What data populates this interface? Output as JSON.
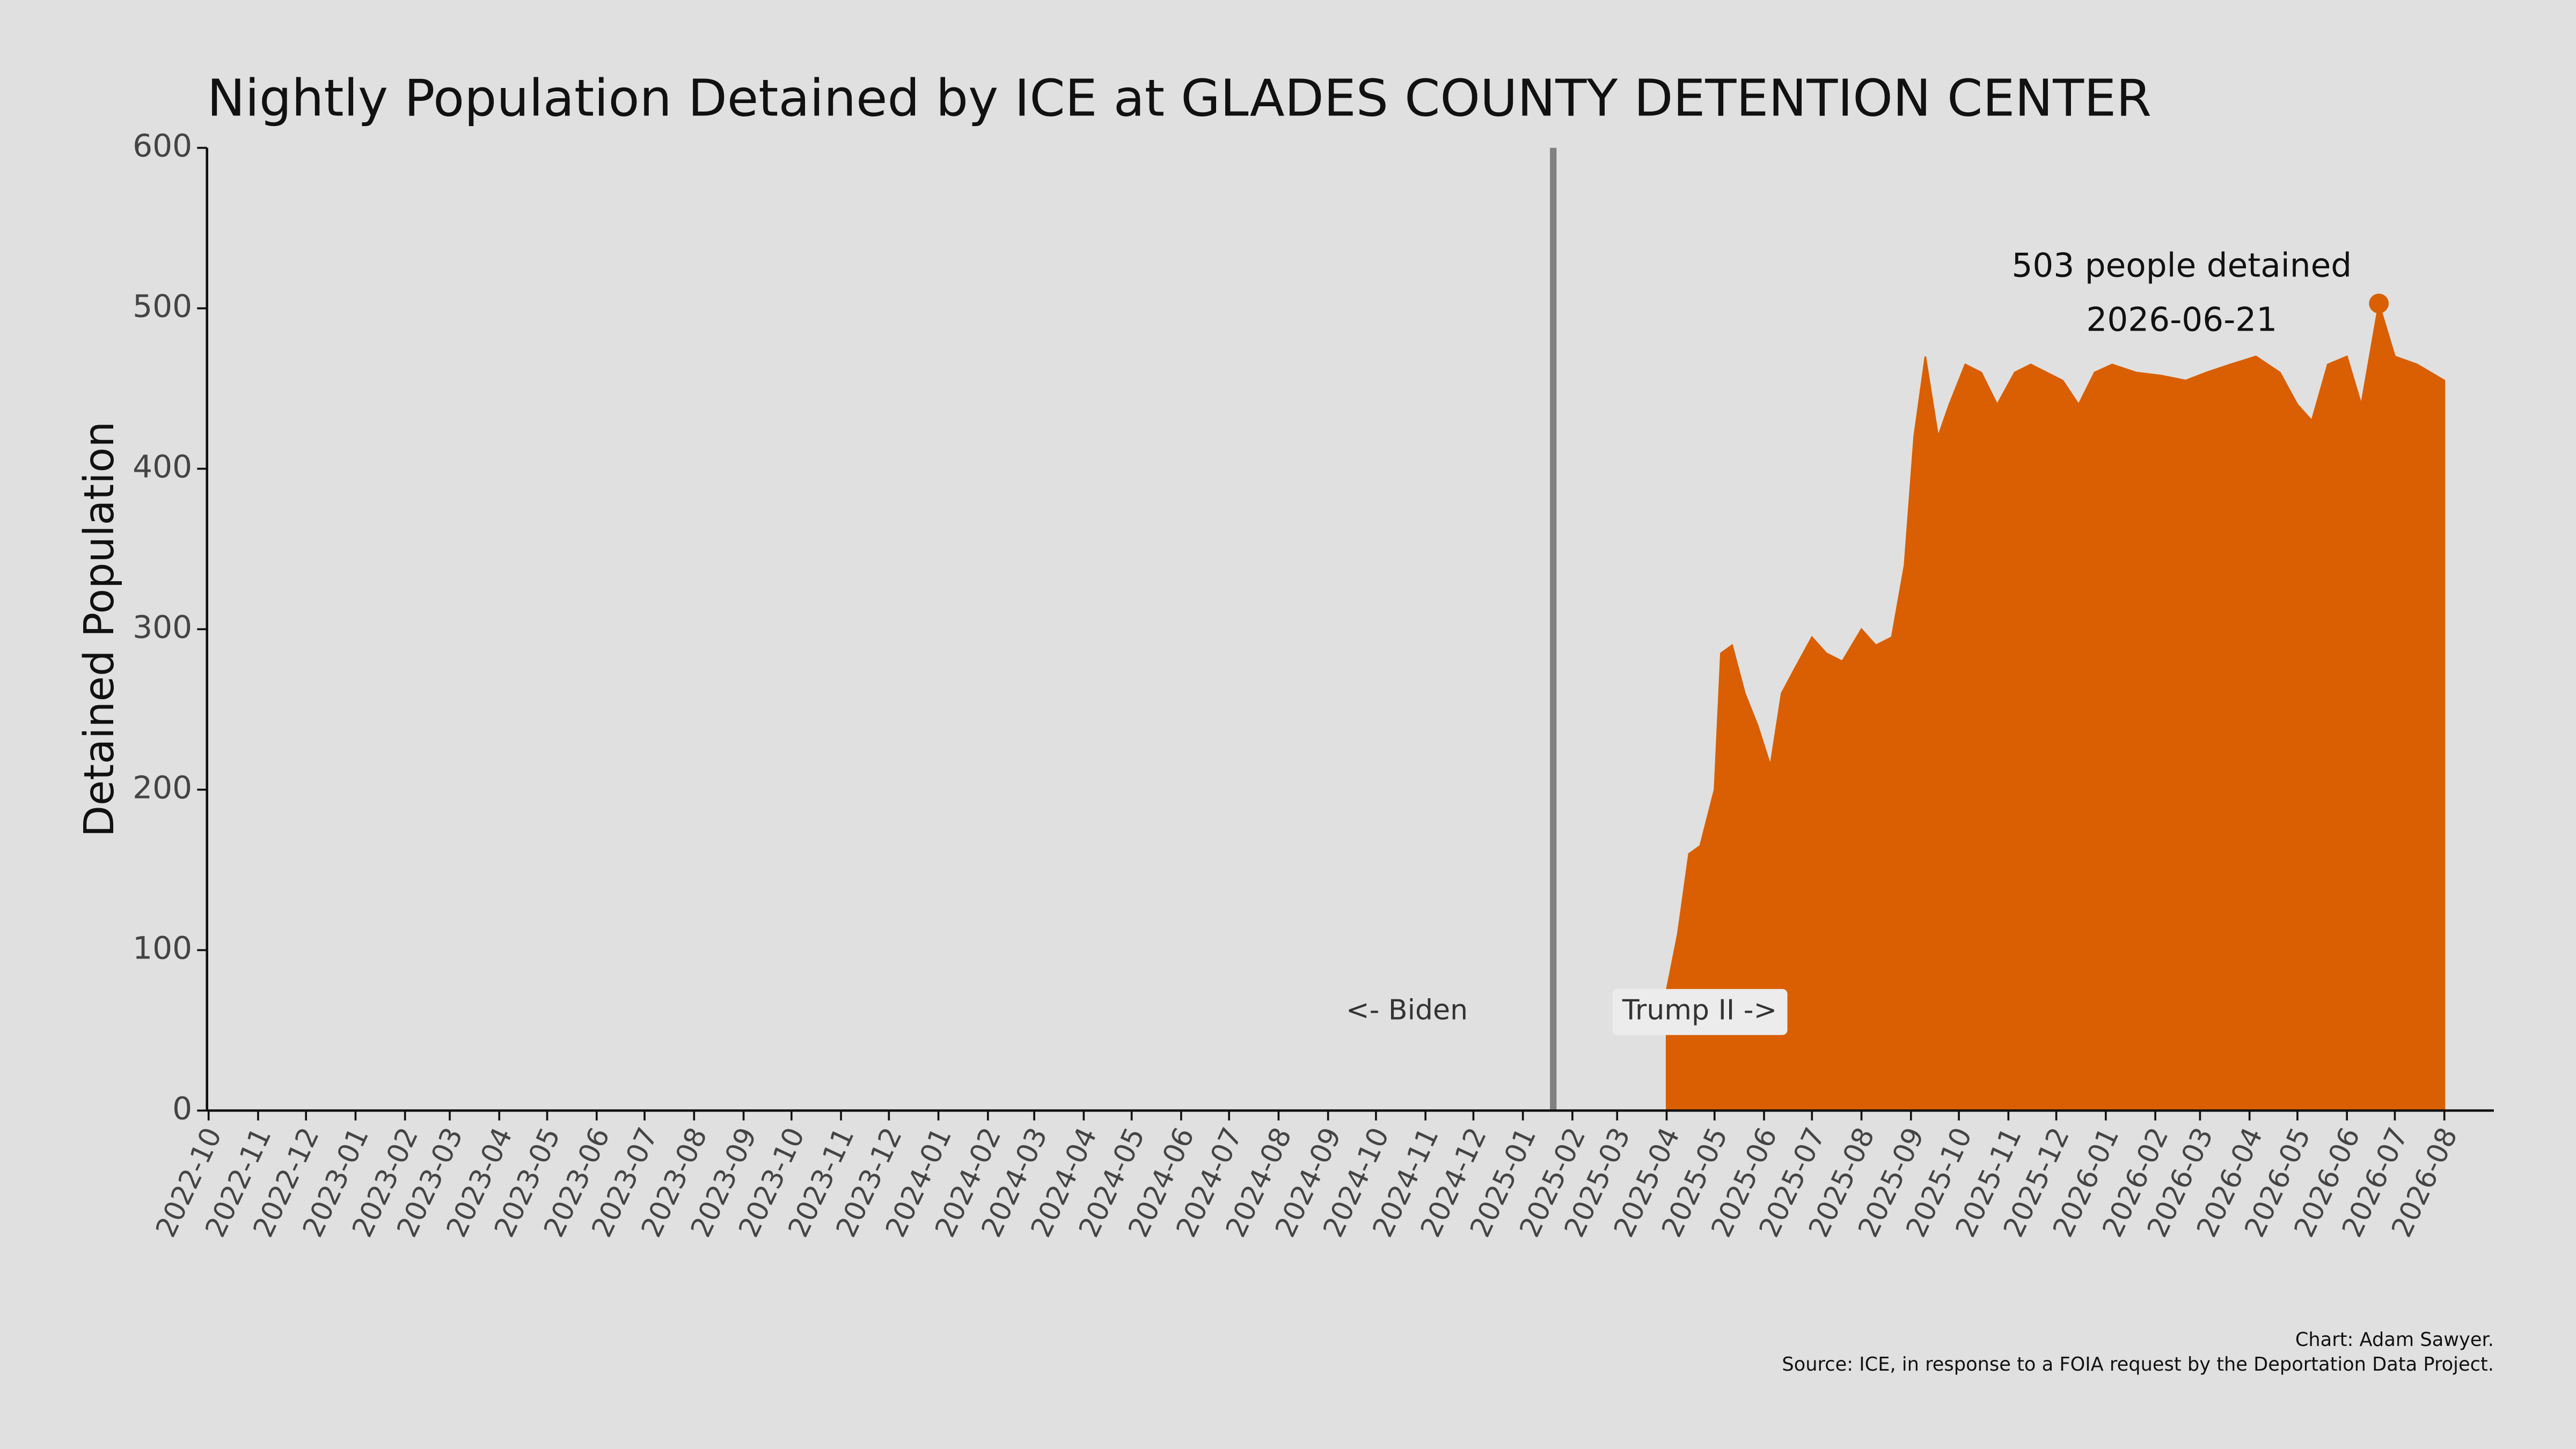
{
  "chart_data": {
    "type": "area",
    "title": "Nightly Population Detained by ICE at GLADES COUNTY DETENTION CENTER",
    "ylabel": "Detained Population",
    "color": "#d95f02",
    "x": [
      "2025-04-01",
      "2025-04-08",
      "2025-04-15",
      "2025-04-22",
      "2025-05-01",
      "2025-05-05",
      "2025-05-12",
      "2025-05-20",
      "2025-05-28",
      "2025-06-05",
      "2025-06-12",
      "2025-06-20",
      "2025-07-01",
      "2025-07-10",
      "2025-07-20",
      "2025-08-01",
      "2025-08-10",
      "2025-08-20",
      "2025-08-28",
      "2025-09-03",
      "2025-09-10",
      "2025-09-18",
      "2025-09-25",
      "2025-10-05",
      "2025-10-15",
      "2025-10-25",
      "2025-11-05",
      "2025-11-15",
      "2025-11-25",
      "2025-12-05",
      "2025-12-15",
      "2025-12-25",
      "2026-01-05",
      "2026-01-20",
      "2026-02-05",
      "2026-02-20",
      "2026-03-05",
      "2026-03-20",
      "2026-04-05",
      "2026-04-20",
      "2026-05-01",
      "2026-05-10",
      "2026-05-20",
      "2026-06-01",
      "2026-06-10",
      "2026-06-21",
      "2026-07-01",
      "2026-07-15",
      "2026-08-01"
    ],
    "values": [
      75,
      110,
      160,
      165,
      200,
      285,
      290,
      260,
      240,
      215,
      260,
      275,
      295,
      285,
      280,
      300,
      290,
      295,
      340,
      420,
      470,
      420,
      440,
      465,
      460,
      440,
      460,
      465,
      460,
      455,
      440,
      460,
      465,
      460,
      458,
      455,
      460,
      465,
      470,
      460,
      440,
      430,
      465,
      470,
      440,
      503,
      470,
      465,
      455
    ],
    "xlim": [
      "2022-09-30",
      "2026-09-01"
    ],
    "xticks": [
      "2022-10",
      "2022-11",
      "2022-12",
      "2023-01",
      "2023-02",
      "2023-03",
      "2023-04",
      "2023-05",
      "2023-06",
      "2023-07",
      "2023-08",
      "2023-09",
      "2023-10",
      "2023-11",
      "2023-12",
      "2024-01",
      "2024-02",
      "2024-03",
      "2024-04",
      "2024-05",
      "2024-06",
      "2024-07",
      "2024-08",
      "2024-09",
      "2024-10",
      "2024-11",
      "2024-12",
      "2025-01",
      "2025-02",
      "2025-03",
      "2025-04",
      "2025-05",
      "2025-06",
      "2025-07",
      "2025-08",
      "2025-09",
      "2025-10",
      "2025-11",
      "2025-12",
      "2026-01",
      "2026-02",
      "2026-03",
      "2026-04",
      "2026-05",
      "2026-06",
      "2026-07",
      "2026-08"
    ],
    "ylim": [
      0,
      600
    ],
    "yticks": [
      0,
      100,
      200,
      300,
      400,
      500,
      600
    ],
    "event": {
      "x": "2025-01-20",
      "left_label": "<- Biden",
      "right_label": "Trump II ->"
    },
    "peak": {
      "x": "2026-06-21",
      "y": 503,
      "label_lines": [
        "503 people detained",
        "2026-06-21"
      ]
    },
    "caption": [
      "Chart: Adam Sawyer.",
      "Source: ICE, in response to a FOIA request by the Deportation Data Project."
    ]
  }
}
